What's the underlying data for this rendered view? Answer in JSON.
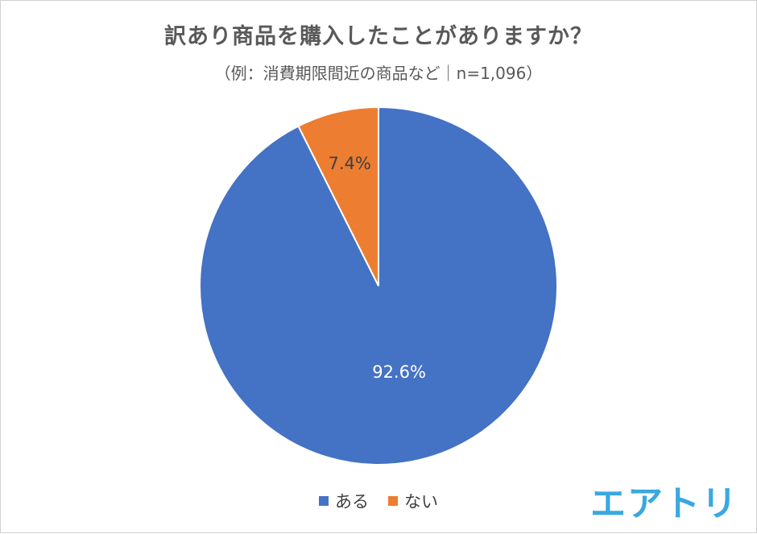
{
  "chart_data": {
    "type": "pie",
    "title": "訳あり商品を購入したことがありますか？",
    "subtitle": "（例：消費期限間近の商品など｜n=1,096）",
    "categories": [
      "ある",
      "ない"
    ],
    "values": [
      92.6,
      7.4
    ],
    "data_labels": [
      "92.6%",
      "7.4%"
    ],
    "colors": [
      "#4472c4",
      "#ed7d31"
    ],
    "legend_position": "bottom"
  },
  "logo_text": "エアトリ"
}
